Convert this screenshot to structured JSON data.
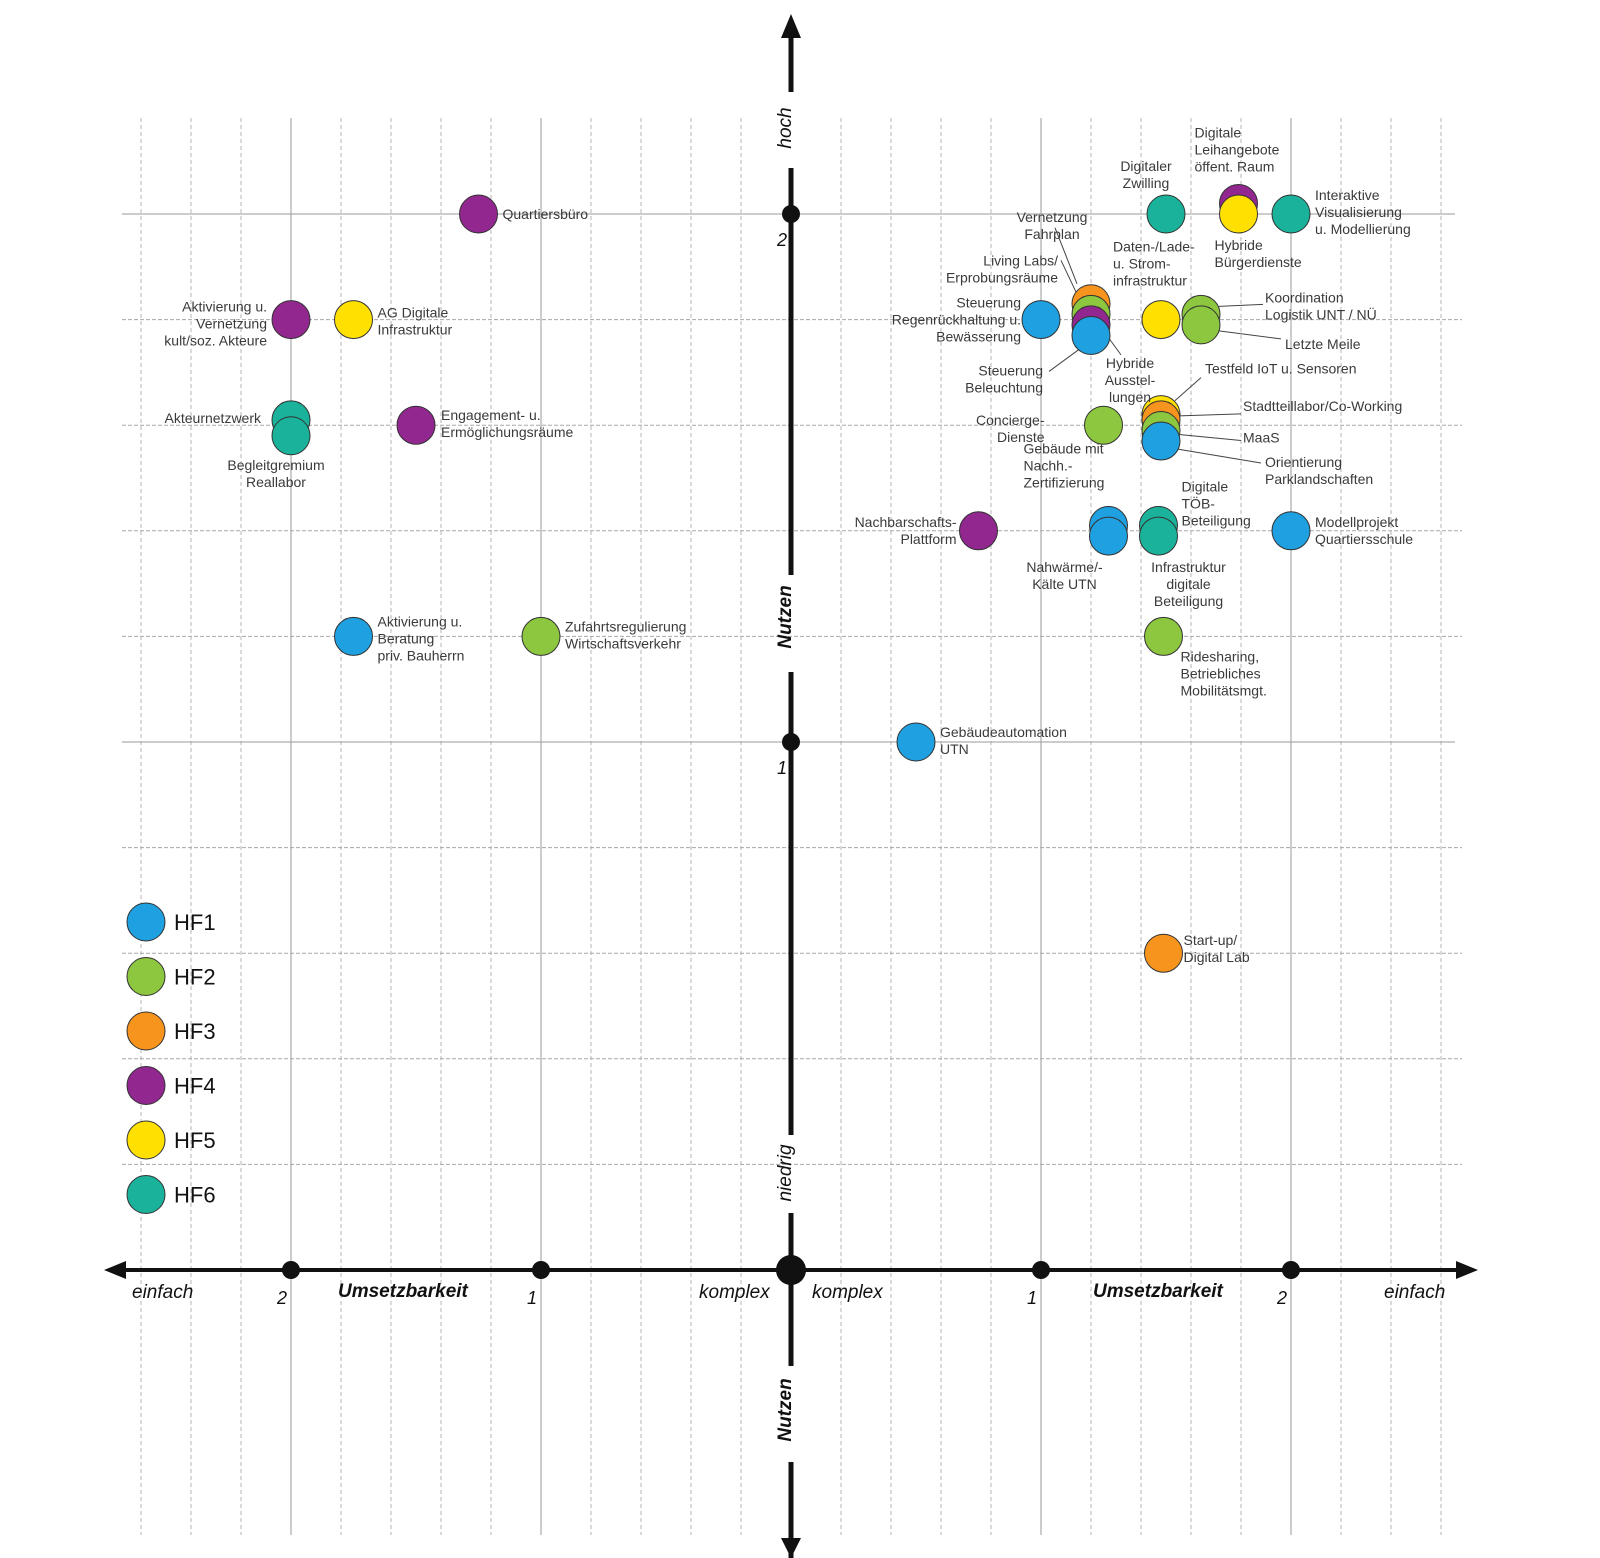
{
  "chart_data": {
    "type": "scatter",
    "title": "",
    "x_axis": {
      "left_label": "Umsetzbarkeit",
      "right_label": "Umsetzbarkeit",
      "left_end": "einfach",
      "left_center": "komplex",
      "right_center": "komplex",
      "right_end": "einfach",
      "ticks": [
        {
          "value": -2,
          "label": "2"
        },
        {
          "value": -1,
          "label": "1"
        },
        {
          "value": 1,
          "label": "1"
        },
        {
          "value": 2,
          "label": "2"
        }
      ],
      "range": [
        -2.7,
        2.7
      ]
    },
    "y_axis": {
      "label_upper": "Nutzen",
      "label_lower": "Nutzen",
      "top_label": "hoch",
      "bottom_label": "niedrig",
      "ticks": [
        {
          "value": 1,
          "label": "1"
        },
        {
          "value": 2,
          "label": "2"
        }
      ],
      "range": [
        -0.55,
        2.4
      ]
    },
    "colors": {
      "HF1": "#1fa0e0",
      "HF2": "#8dc63f",
      "HF3": "#f7941d",
      "HF4": "#92278f",
      "HF5": "#ffe000",
      "HF6": "#1ab29a"
    },
    "legend": [
      "HF1",
      "HF2",
      "HF3",
      "HF4",
      "HF5",
      "HF6"
    ],
    "points": [
      {
        "label": "Quartiersbüro",
        "group": "HF4",
        "x": -1.25,
        "y": 2.0
      },
      {
        "label": "Aktivierung u. Vernetzung kult/soz. Akteure",
        "group": "HF4",
        "x": -2.0,
        "y": 1.8
      },
      {
        "label": "AG Digitale Infrastruktur",
        "group": "HF5",
        "x": -1.75,
        "y": 1.8
      },
      {
        "label": "Akteurnetzwerk",
        "group": "HF6",
        "x": -2.0,
        "y": 1.61
      },
      {
        "label": "Begleitgremium Reallabor",
        "group": "HF6",
        "x": -2.0,
        "y": 1.58
      },
      {
        "label": "Engagement- u. Ermöglichungsräume",
        "group": "HF4",
        "x": -1.5,
        "y": 1.6
      },
      {
        "label": "Aktivierung u. Beratung priv. Bauherrn",
        "group": "HF1",
        "x": -1.75,
        "y": 1.2
      },
      {
        "label": "Zufahrtsregulierung Wirtschaftsverkehr",
        "group": "HF2",
        "x": -1.0,
        "y": 1.2
      },
      {
        "label": "Digitaler Zwilling",
        "group": "HF6",
        "x": 1.5,
        "y": 2.0
      },
      {
        "label": "Digitale Leihangebote öffent. Raum",
        "group": "HF4",
        "x": 1.79,
        "y": 2.02
      },
      {
        "label": "Hybride Bürgerdienste",
        "group": "HF5",
        "x": 1.79,
        "y": 2.0
      },
      {
        "label": "Interaktive Visualisierung u. Modellierung",
        "group": "HF6",
        "x": 2.0,
        "y": 2.0
      },
      {
        "label": "Vernetzung Fahrplan",
        "group": "HF3",
        "x": 1.2,
        "y": 1.83
      },
      {
        "label": "Living Labs/ Erprobungsräume",
        "group": "HF2",
        "x": 1.2,
        "y": 1.81
      },
      {
        "label": "Hybride Ausstel-lungen",
        "group": "HF4",
        "x": 1.2,
        "y": 1.79
      },
      {
        "label": "Steuerung Beleuchtung",
        "group": "HF1",
        "x": 1.2,
        "y": 1.77
      },
      {
        "label": "Steuerung Regenrückhaltung u. Bewässerung",
        "group": "HF1",
        "x": 1.0,
        "y": 1.8
      },
      {
        "label": "Daten-/Lade- u. Strom-infrastruktur",
        "group": "HF5",
        "x": 1.48,
        "y": 1.8
      },
      {
        "label": "Koordination Logistik UNT / NÜ",
        "group": "HF2",
        "x": 1.64,
        "y": 1.81
      },
      {
        "label": "Letzte Meile",
        "group": "HF2",
        "x": 1.64,
        "y": 1.79
      },
      {
        "label": "Concierge-Dienste",
        "group": "HF2",
        "x": 1.25,
        "y": 1.6
      },
      {
        "label": "Testfeld IoT u. Sensoren",
        "group": "HF5",
        "x": 1.48,
        "y": 1.62
      },
      {
        "label": "Stadtteillabor/Co-Working",
        "group": "HF3",
        "x": 1.48,
        "y": 1.61
      },
      {
        "label": "MaaS",
        "group": "HF2",
        "x": 1.48,
        "y": 1.59
      },
      {
        "label": "Orientierung Parklandschaften",
        "group": "HF1",
        "x": 1.48,
        "y": 1.57
      },
      {
        "label": "Nachbarschafts-Plattform",
        "group": "HF4",
        "x": 0.75,
        "y": 1.4
      },
      {
        "label": "Gebäude mit Nachh.-Zertifizierung",
        "group": "HF1",
        "x": 1.27,
        "y": 1.41
      },
      {
        "label": "Nahwärme/-Kälte UTN",
        "group": "HF1",
        "x": 1.27,
        "y": 1.39
      },
      {
        "label": "Digitale TÖB-Beteiligung",
        "group": "HF6",
        "x": 1.47,
        "y": 1.41
      },
      {
        "label": "Infrastruktur digitale Beteiligung",
        "group": "HF6",
        "x": 1.47,
        "y": 1.39
      },
      {
        "label": "Modellprojekt Quartiersschule",
        "group": "HF1",
        "x": 2.0,
        "y": 1.4
      },
      {
        "label": "Ridesharing, Betriebliches Mobilitätsmgt.",
        "group": "HF2",
        "x": 1.49,
        "y": 1.2
      },
      {
        "label": "Gebäudeautomation UTN",
        "group": "HF1",
        "x": 0.5,
        "y": 1.0
      },
      {
        "label": "Start-up/ Digital Lab",
        "group": "HF3",
        "x": 1.49,
        "y": 0.6
      }
    ]
  }
}
